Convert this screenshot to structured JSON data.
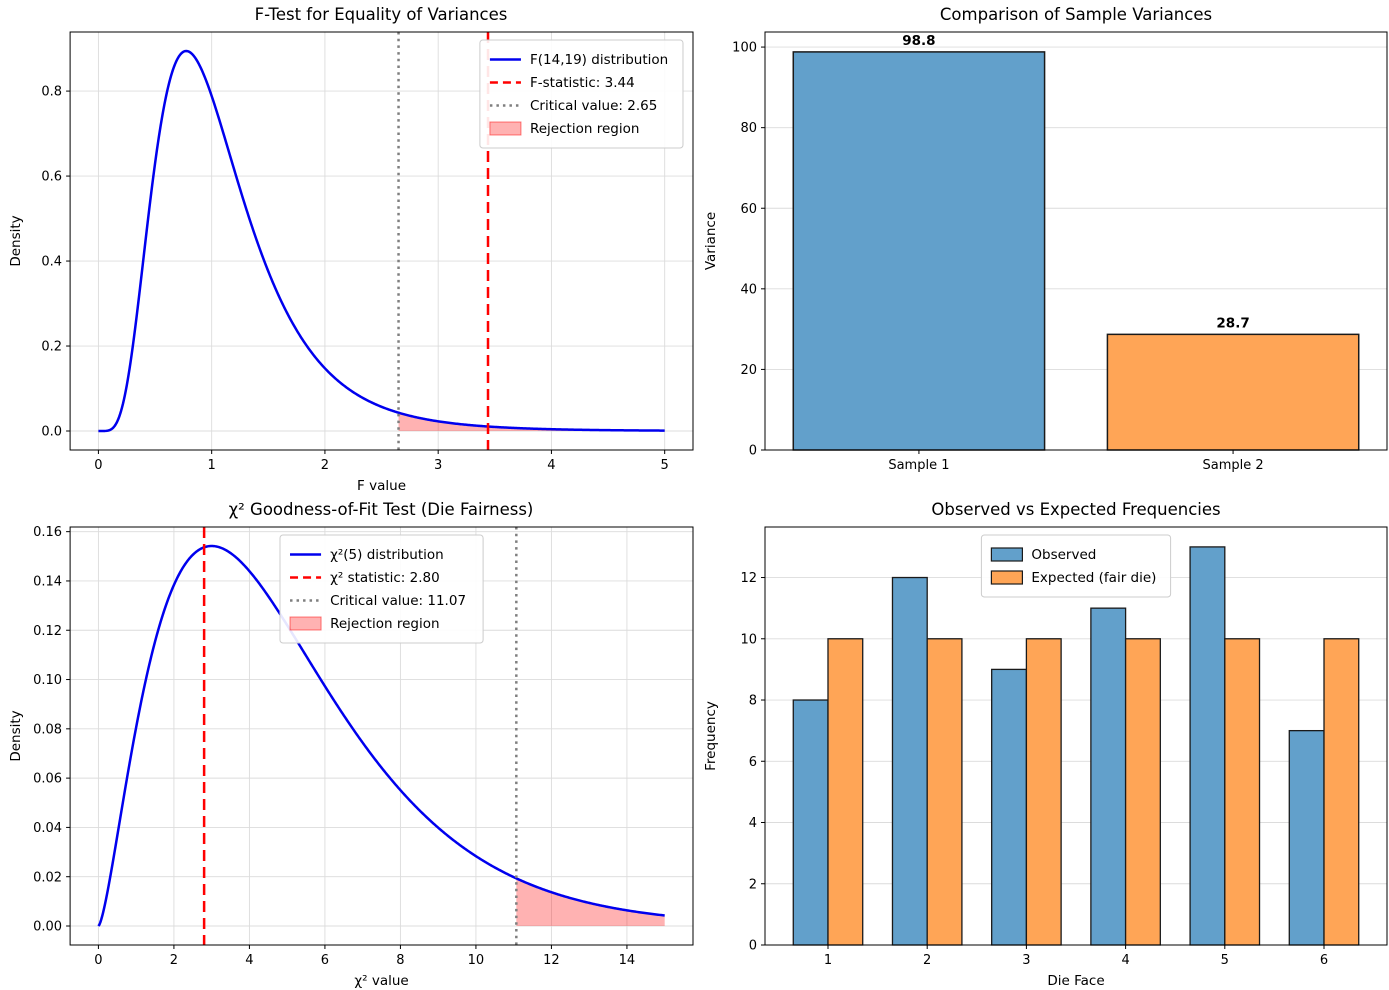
{
  "figure": {
    "background": "#ffffff",
    "description": "2x2 grid of statistical hypothesis test charts"
  },
  "colors": {
    "curve": "#0000ee",
    "statistic_line": "#ff0000",
    "critical_line": "#7f7f7f",
    "rejection_fill": "rgba(255,0,0,0.30)",
    "rejection_edge": "rgba(255,0,0,0.50)",
    "bar_edge": "#1a1a1a",
    "grid": "#dcdcdc",
    "spine": "#000000",
    "legend_border": "#cccccc",
    "legend_bg": "rgba(255,255,255,0.9)"
  },
  "chart_data": [
    {
      "type": "density",
      "title": "F-Test for Equality of Variances",
      "xlabel": "F value",
      "ylabel": "Density",
      "dist": {
        "kind": "f",
        "d1": 14,
        "d2": 19
      },
      "x_max": 5,
      "xticks": [
        0,
        1,
        2,
        3,
        4,
        5
      ],
      "yticks": [
        0.0,
        0.2,
        0.4,
        0.6,
        0.8
      ],
      "ytick_decimals": 1,
      "statistic_value": 3.44,
      "critical_value": 2.65,
      "grid": true,
      "legend_loc": "upper-right",
      "legend": [
        {
          "label": "F(14,19) distribution",
          "marker": "line",
          "color": "#0000ee"
        },
        {
          "label": "F-statistic: 3.44",
          "marker": "dashed",
          "color": "#ff0000"
        },
        {
          "label": "Critical value: 2.65",
          "marker": "dotted",
          "color": "#7f7f7f"
        },
        {
          "label": "Rejection region",
          "marker": "patch",
          "color": "rgba(255,0,0,0.30)"
        }
      ]
    },
    {
      "type": "bar",
      "title": "Comparison of Sample Variances",
      "xlabel": "",
      "ylabel": "Variance",
      "categories": [
        "Sample 1",
        "Sample 2"
      ],
      "values": [
        98.8,
        28.7
      ],
      "value_labels": [
        "98.8",
        "28.7"
      ],
      "bar_colors": [
        "#62a0cb",
        "#ffa556"
      ],
      "yticks": [
        0,
        20,
        40,
        60,
        80,
        100
      ],
      "ytick_decimals": 0,
      "grid": true
    },
    {
      "type": "density",
      "title": "χ² Goodness-of-Fit Test (Die Fairness)",
      "xlabel": "χ² value",
      "ylabel": "Density",
      "dist": {
        "kind": "chi2",
        "df": 5
      },
      "x_max": 15,
      "xticks": [
        0,
        2,
        4,
        6,
        8,
        10,
        12,
        14
      ],
      "yticks": [
        0.0,
        0.02,
        0.04,
        0.06,
        0.08,
        0.1,
        0.12,
        0.14,
        0.16
      ],
      "ytick_decimals": 2,
      "statistic_value": 2.8,
      "critical_value": 11.07,
      "grid": true,
      "legend_loc": "upper-center",
      "legend": [
        {
          "label": "χ²(5) distribution",
          "marker": "line",
          "color": "#0000ee"
        },
        {
          "label": "χ² statistic: 2.80",
          "marker": "dashed",
          "color": "#ff0000"
        },
        {
          "label": "Critical value: 11.07",
          "marker": "dotted",
          "color": "#7f7f7f"
        },
        {
          "label": "Rejection region",
          "marker": "patch",
          "color": "rgba(255,0,0,0.30)"
        }
      ]
    },
    {
      "type": "grouped_bar",
      "title": "Observed vs Expected Frequencies",
      "xlabel": "Die Face",
      "ylabel": "Frequency",
      "categories": [
        "1",
        "2",
        "3",
        "4",
        "5",
        "6"
      ],
      "series": [
        {
          "name": "Observed",
          "values": [
            8,
            12,
            9,
            11,
            13,
            7
          ],
          "color": "#62a0cb"
        },
        {
          "name": "Expected (fair die)",
          "values": [
            10,
            10,
            10,
            10,
            10,
            10
          ],
          "color": "#ffa556"
        }
      ],
      "yticks": [
        0,
        2,
        4,
        6,
        8,
        10,
        12
      ],
      "ytick_decimals": 0,
      "grid": true,
      "legend_loc": "upper-center",
      "legend": [
        {
          "label": "Observed",
          "marker": "bar-patch",
          "color": "#62a0cb"
        },
        {
          "label": "Expected (fair die)",
          "marker": "bar-patch",
          "color": "#ffa556"
        }
      ]
    }
  ]
}
